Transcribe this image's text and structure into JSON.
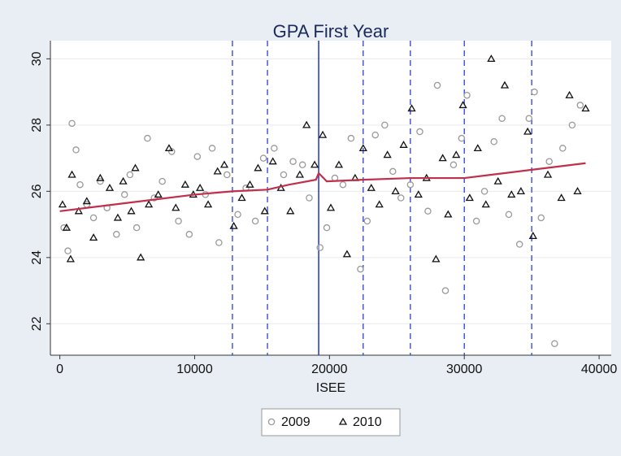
{
  "chart_data": {
    "type": "scatter",
    "title": "GPA First Year",
    "x_label": "ISEE",
    "xlim": [
      -700,
      40900
    ],
    "ylim": [
      21.05,
      30.55
    ],
    "xticks": [
      0,
      10000,
      20000,
      30000,
      40000
    ],
    "yticks": [
      22,
      24,
      26,
      28,
      30
    ],
    "grid": true,
    "series": [
      {
        "name": "2009",
        "color": "#9a9a9a",
        "marker": "circle",
        "x": [
          300,
          600,
          900,
          1200,
          1500,
          2000,
          2500,
          3000,
          3500,
          4200,
          4800,
          5200,
          5700,
          6500,
          7000,
          7600,
          8300,
          8800,
          9600,
          10200,
          10800,
          11300,
          11800,
          12400,
          13200,
          13800,
          14500,
          15100,
          15900,
          16600,
          17300,
          18000,
          18500,
          19300,
          19800,
          20400,
          21000,
          21600,
          22300,
          22800,
          23400,
          24100,
          24700,
          25300,
          26000,
          26700,
          27300,
          28000,
          28600,
          29200,
          29800,
          30200,
          30900,
          31500,
          32200,
          32800,
          33300,
          34100,
          34800,
          35200,
          35700,
          36300,
          36700,
          37300,
          38000,
          38600
        ],
        "values": [
          24.9,
          24.2,
          28.05,
          27.25,
          26.2,
          25.6,
          25.2,
          26.3,
          25.5,
          24.7,
          25.9,
          26.5,
          24.9,
          27.6,
          25.8,
          26.3,
          27.2,
          25.1,
          24.7,
          27.05,
          25.9,
          27.3,
          24.45,
          26.5,
          25.3,
          26.1,
          25.1,
          27.0,
          27.3,
          26.5,
          26.9,
          26.8,
          25.8,
          24.3,
          24.9,
          26.4,
          26.2,
          27.6,
          23.65,
          25.1,
          27.7,
          28.0,
          26.6,
          25.8,
          26.2,
          27.8,
          25.4,
          29.2,
          23.0,
          26.8,
          27.6,
          28.9,
          25.1,
          26.0,
          27.5,
          28.2,
          25.3,
          24.4,
          28.2,
          29.0,
          25.2,
          26.9,
          21.4,
          27.3,
          28.0,
          28.6
        ]
      },
      {
        "name": "2010",
        "color": "#111111",
        "marker": "triangle",
        "x": [
          200,
          500,
          800,
          900,
          1400,
          2000,
          2500,
          3000,
          3700,
          4300,
          4700,
          5300,
          5600,
          6000,
          6600,
          7300,
          8100,
          8600,
          9300,
          9900,
          10400,
          11000,
          11700,
          12200,
          12900,
          13500,
          14100,
          14700,
          15200,
          15800,
          16400,
          17100,
          17800,
          18300,
          18900,
          19500,
          20100,
          20700,
          21300,
          21900,
          22500,
          23100,
          23700,
          24300,
          24900,
          25500,
          26100,
          26600,
          27200,
          27900,
          28400,
          28800,
          29400,
          29900,
          30400,
          31000,
          31600,
          32000,
          32500,
          33000,
          33500,
          34200,
          34700,
          35100,
          36200,
          37200,
          37800,
          38400,
          39000
        ],
        "values": [
          25.6,
          24.9,
          23.95,
          26.5,
          25.4,
          25.7,
          24.6,
          26.4,
          26.1,
          25.2,
          26.3,
          25.4,
          26.7,
          24.0,
          25.6,
          25.9,
          27.3,
          25.5,
          26.2,
          25.9,
          26.1,
          25.6,
          26.6,
          26.8,
          24.95,
          25.8,
          26.2,
          26.7,
          25.4,
          26.9,
          26.1,
          25.4,
          26.5,
          28.0,
          26.8,
          27.7,
          25.5,
          26.8,
          24.1,
          26.4,
          27.3,
          26.1,
          25.6,
          27.1,
          26.0,
          27.4,
          28.5,
          25.9,
          26.4,
          23.95,
          27.0,
          25.3,
          27.1,
          28.6,
          25.8,
          27.3,
          25.6,
          30.0,
          26.3,
          29.2,
          25.9,
          26.0,
          27.8,
          24.65,
          26.5,
          25.8,
          28.9,
          26.0,
          28.5
        ]
      }
    ],
    "fit": {
      "color": "#c0304a",
      "x": [
        0,
        5000,
        10000,
        12800,
        15400,
        17000,
        19000,
        19200,
        19800,
        22500,
        26000,
        28000,
        30000,
        32000,
        35000,
        39000
      ],
      "values": [
        25.4,
        25.65,
        25.9,
        26.0,
        26.05,
        26.2,
        26.35,
        26.55,
        26.3,
        26.35,
        26.4,
        26.4,
        26.4,
        26.5,
        26.65,
        26.85
      ]
    },
    "vlines": {
      "color": "#2b3fd6",
      "dashed": [
        12800,
        15400,
        22500,
        26000,
        30000,
        35000
      ],
      "solid": [
        19200
      ]
    }
  }
}
